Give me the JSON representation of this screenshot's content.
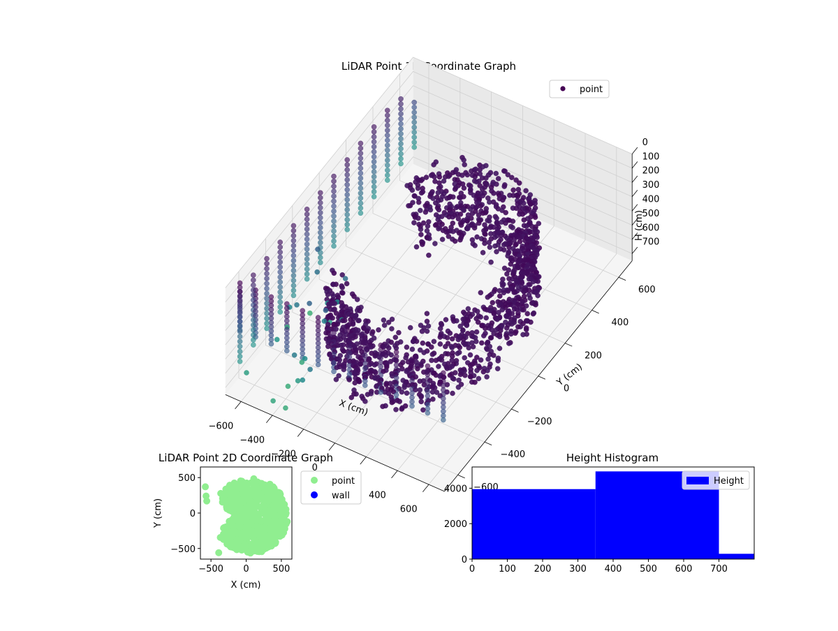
{
  "chart_data": [
    {
      "id": "scatter3d",
      "type": "scatter",
      "projection": "3d",
      "title": "LiDAR Point 3D Coordinate Graph",
      "xlabel": "X (cm)",
      "ylabel": "Y (cm)",
      "zlabel": "H (cm)",
      "x_ticks": [
        -600,
        -400,
        -200,
        0,
        200,
        400,
        600
      ],
      "y_ticks": [
        -600,
        -400,
        -200,
        0,
        200,
        400,
        600
      ],
      "z_ticks": [
        0,
        100,
        200,
        300,
        400,
        500,
        600,
        700
      ],
      "xlim": [
        -700,
        700
      ],
      "ylim": [
        -700,
        700
      ],
      "zlim": [
        0,
        750
      ],
      "z_inverted": true,
      "grid": true,
      "legend": {
        "placement": "top-right",
        "entries": [
          {
            "label": "point",
            "color": "#440154"
          }
        ]
      },
      "colormap": "viridis",
      "series": [
        {
          "name": "point",
          "structures": [
            {
              "kind": "wall-columns",
              "y": -650,
              "x_start": -650,
              "x_end": 650,
              "x_step": 100,
              "z_start": 0,
              "z_end": 340,
              "z_step": 30
            },
            {
              "kind": "wall-columns",
              "x": -650,
              "y_start": -650,
              "y_end": 650,
              "y_step": 100,
              "z_start": 60,
              "z_end": 560,
              "z_step": 35
            },
            {
              "kind": "arc-shell",
              "center": [
                60,
                -40
              ],
              "radius_min": 360,
              "radius_max": 520,
              "angle_start_deg": -145,
              "angle_end_deg": 145,
              "z_start": 120,
              "z_end": 620
            }
          ]
        }
      ]
    },
    {
      "id": "scatter2d",
      "type": "scatter",
      "title": "LiDAR Point 2D Coordinate Graph",
      "xlabel": "X (cm)",
      "ylabel": "Y (cm)",
      "x_ticks": [
        -500,
        0,
        500
      ],
      "y_ticks": [
        -500,
        0,
        500
      ],
      "xlim": [
        -650,
        650
      ],
      "ylim": [
        -650,
        650
      ],
      "legend": {
        "placement": "outside-right",
        "entries": [
          {
            "label": "point",
            "color": "#90ee90"
          },
          {
            "label": "wall",
            "color": "#0000ff"
          }
        ]
      },
      "series": [
        {
          "name": "point",
          "color": "#90ee90",
          "shape": {
            "kind": "crescent",
            "center": [
              60,
              -40
            ],
            "radius": 530,
            "notch_angle_deg": 180,
            "notch_half_width_deg": 35
          },
          "outliers": [
            [
              -580,
              370
            ],
            [
              -570,
              240
            ],
            [
              -560,
              170
            ],
            [
              -390,
              -560
            ]
          ]
        },
        {
          "name": "wall",
          "color": "#0000ff",
          "points": []
        }
      ]
    },
    {
      "id": "histogram",
      "type": "bar",
      "title": "Height Histogram",
      "xlabel": "",
      "ylabel": "",
      "x_ticks": [
        0,
        100,
        200,
        300,
        400,
        500,
        600,
        700
      ],
      "y_ticks": [
        0,
        2000,
        4000
      ],
      "xlim": [
        0,
        800
      ],
      "ylim": [
        0,
        5200
      ],
      "legend": {
        "placement": "top-right",
        "entries": [
          {
            "label": "Height",
            "color": "#0000ff"
          }
        ]
      },
      "series": [
        {
          "name": "Height",
          "color": "#0000ff",
          "bins": [
            {
              "x0": 0,
              "x1": 350,
              "count": 3950
            },
            {
              "x0": 350,
              "x1": 700,
              "count": 4950
            },
            {
              "x0": 700,
              "x1": 800,
              "count": 300
            }
          ]
        }
      ]
    }
  ]
}
